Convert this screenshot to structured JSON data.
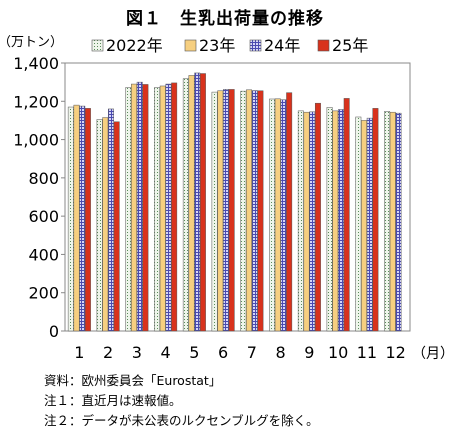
{
  "chart_data": {
    "type": "bar",
    "title": "図１　生乳出荷量の推移",
    "ylabel": "（万トン）",
    "xlabel": "（月）",
    "categories": [
      "1",
      "2",
      "3",
      "4",
      "5",
      "6",
      "7",
      "8",
      "9",
      "10",
      "11",
      "12"
    ],
    "ylim": [
      0,
      1400
    ],
    "yticks": [
      "0",
      "200",
      "400",
      "600",
      "800",
      "1,000",
      "1,200",
      "1,400"
    ],
    "ytick_values": [
      0,
      200,
      400,
      600,
      800,
      1000,
      1200,
      1400
    ],
    "grid": false,
    "legend_position": "top",
    "series": [
      {
        "name": "2022年",
        "values": [
          1170,
          1105,
          1272,
          1272,
          1318,
          1248,
          1253,
          1212,
          1150,
          1168,
          1118,
          1147
        ],
        "color": "#e8f1e4",
        "pattern": "dots"
      },
      {
        "name": "23年",
        "values": [
          1180,
          1115,
          1290,
          1280,
          1335,
          1255,
          1260,
          1213,
          1143,
          1150,
          1100,
          1143
        ],
        "color": "#f6cf80",
        "pattern": "solid"
      },
      {
        "name": "24年",
        "values": [
          1175,
          1160,
          1300,
          1290,
          1348,
          1262,
          1256,
          1208,
          1145,
          1157,
          1112,
          1138
        ],
        "color": "#c9c9f2",
        "pattern": "grid"
      },
      {
        "name": "25年",
        "values": [
          1163,
          1093,
          1288,
          1296,
          1345,
          1262,
          1255,
          1245,
          1190,
          1215,
          1163,
          null
        ],
        "color": "#d8321c",
        "pattern": "solid"
      }
    ]
  },
  "notes": [
    "資料：欧州委員会「Eurostat」",
    "注１：直近月は速報値。",
    "注２：データが未公表のルクセンブルグを除く。"
  ]
}
